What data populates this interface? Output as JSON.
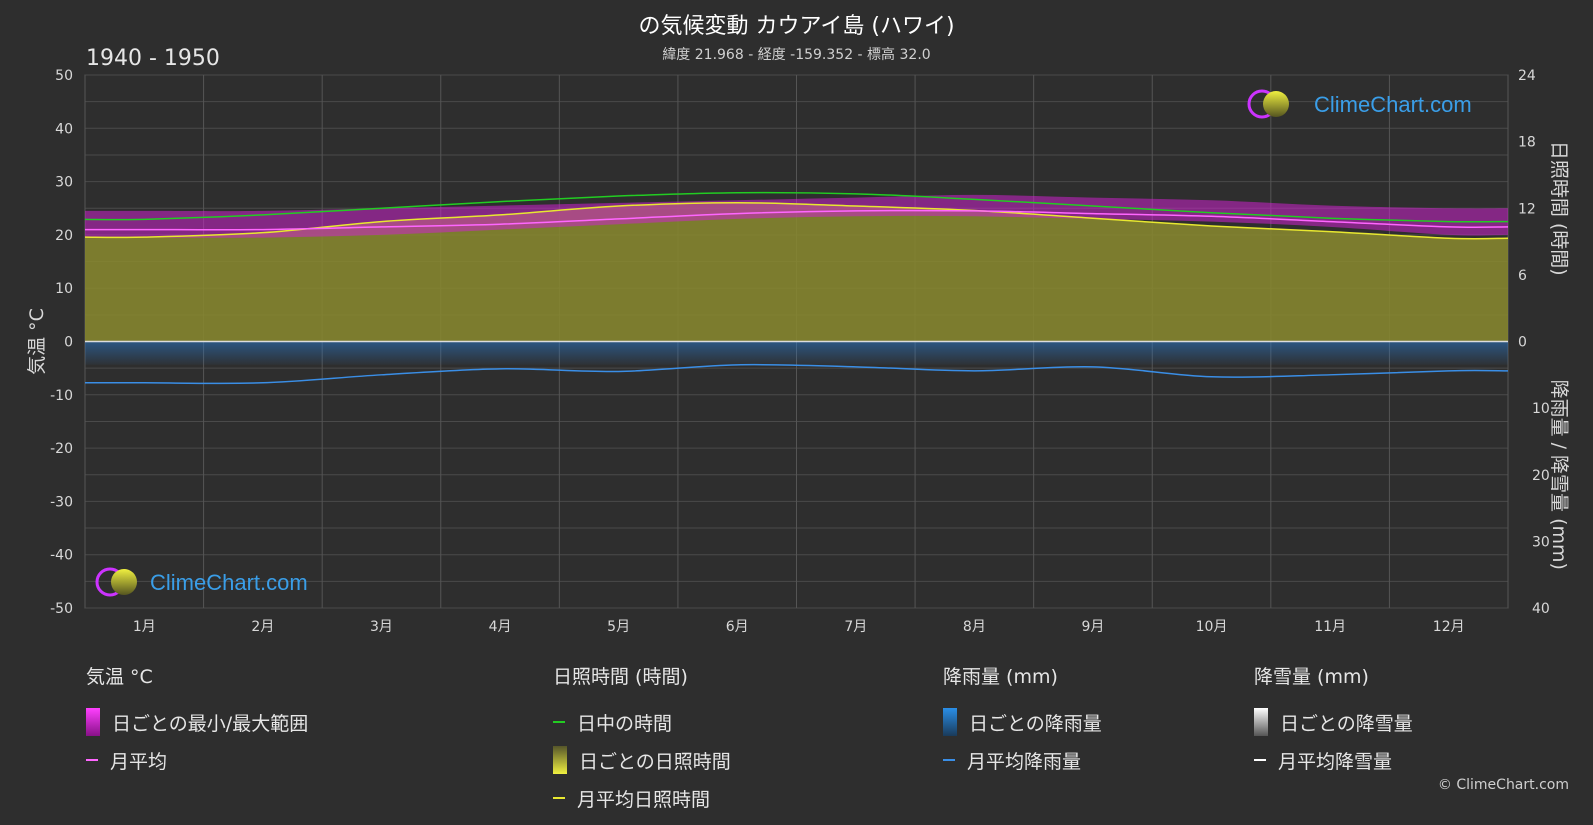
{
  "title": "の気候変動 カウアイ島 (ハワイ)",
  "subtitle": "緯度 21.968 - 経度 -159.352 - 標高 32.0",
  "period": "1940 - 1950",
  "watermark": "ClimeChart.com",
  "copyright": "© ClimeChart.com",
  "colors": {
    "background": "#2e2e2e",
    "daylight": "#22cc22",
    "sunshine_avg": "#e8e830",
    "sunshine_fill": "#8a8a2e",
    "temp_range": "#cc22cc",
    "temp_avg": "#ff66ff",
    "rain": "#2a78c8",
    "rain_avg": "#3a8ee6",
    "snow_avg": "#ffffff"
  },
  "chart_data": {
    "type": "line",
    "x_ticks": [
      "1月",
      "2月",
      "3月",
      "4月",
      "5月",
      "6月",
      "7月",
      "8月",
      "9月",
      "10月",
      "11月",
      "12月"
    ],
    "y_left": {
      "label": "気温 °C",
      "range": [
        -50,
        50
      ],
      "ticks": [
        "50",
        "40",
        "30",
        "20",
        "10",
        "0",
        "-10",
        "-20",
        "-30",
        "-40",
        "-50"
      ]
    },
    "y_right_top": {
      "label": "日照時間 (時間)",
      "range": [
        0,
        24
      ],
      "ticks": [
        "24",
        "18",
        "12",
        "6",
        "0"
      ]
    },
    "y_right_bottom": {
      "label": "降雨量 / 降雪量 (mm)",
      "range": [
        0,
        40
      ],
      "ticks": [
        "10",
        "20",
        "30",
        "40"
      ]
    },
    "grid": true,
    "series": {
      "daylight_hours": [
        11.0,
        11.4,
        12.0,
        12.6,
        13.1,
        13.4,
        13.3,
        12.8,
        12.2,
        11.6,
        11.1,
        10.8
      ],
      "sunshine_hours": [
        9.4,
        9.8,
        10.8,
        11.4,
        12.2,
        12.5,
        12.2,
        11.8,
        11.1,
        10.4,
        9.9,
        9.3
      ],
      "temp_avg": [
        21.0,
        21.0,
        21.5,
        22.0,
        23.0,
        24.0,
        24.5,
        24.5,
        24.0,
        23.5,
        22.5,
        21.5
      ],
      "temp_min": [
        19.5,
        19.5,
        20.0,
        21.0,
        22.0,
        23.0,
        23.5,
        23.5,
        23.0,
        22.5,
        21.5,
        20.0
      ],
      "temp_max": [
        24.5,
        24.5,
        25.0,
        25.5,
        26.0,
        26.5,
        27.0,
        27.5,
        27.0,
        26.5,
        25.5,
        25.0
      ],
      "rain_avg_mm": [
        6.2,
        6.2,
        5.0,
        4.1,
        4.5,
        3.5,
        3.8,
        4.4,
        3.8,
        5.3,
        5.0,
        4.4
      ],
      "snow_avg_mm": [
        0,
        0,
        0,
        0,
        0,
        0,
        0,
        0,
        0,
        0,
        0,
        0
      ]
    }
  },
  "legend": {
    "temp": {
      "title": "気温 °C",
      "range": "日ごとの最小/最大範囲",
      "avg": "月平均"
    },
    "sun": {
      "title": "日照時間 (時間)",
      "daylight": "日中の時間",
      "daily": "日ごとの日照時間",
      "avg": "月平均日照時間"
    },
    "rain": {
      "title": "降雨量 (mm)",
      "daily": "日ごとの降雨量",
      "avg": "月平均降雨量"
    },
    "snow": {
      "title": "降雪量 (mm)",
      "daily": "日ごとの降雪量",
      "avg": "月平均降雪量"
    }
  }
}
